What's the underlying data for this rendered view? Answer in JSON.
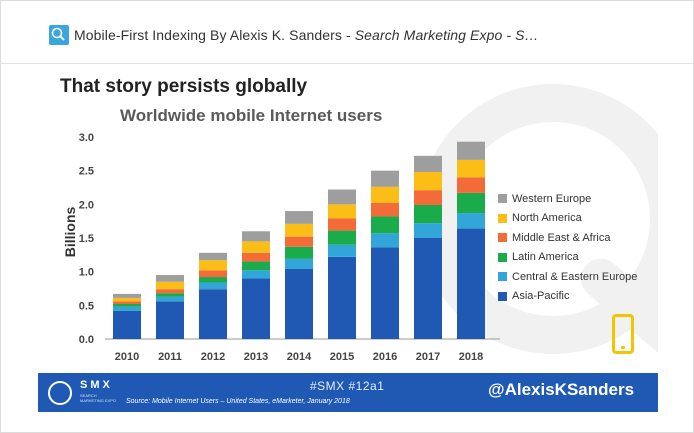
{
  "window": {
    "title_plain": "Mobile-First Indexing By Alexis K. Sanders - ",
    "title_italic": "Search Marketing Expo - S…",
    "logo_icon": "smx-logo-icon"
  },
  "slide": {
    "headline": "That story persists globally",
    "subtitle": "Worldwide mobile Internet users",
    "ylabel": "Billions",
    "footer": {
      "brand": "SMX",
      "brand_sub": "SEARCH MARKETING EXPO",
      "source": "Source: Mobile Internet Users – United States, eMarketer, January 2018",
      "hashtag": "#SMX #12a1",
      "handle": "@AlexisKSanders"
    },
    "phone_icon": "smartphone-icon"
  },
  "chart_data": {
    "type": "bar",
    "stacked": true,
    "categories": [
      "2010",
      "2011",
      "2012",
      "2013",
      "2014",
      "2015",
      "2016",
      "2017",
      "2018"
    ],
    "yticks": [
      "0.0",
      "0.5",
      "1.0",
      "1.5",
      "2.0",
      "2.5",
      "3.0"
    ],
    "ylim": [
      0,
      3.0
    ],
    "legend_position": "right",
    "series": [
      {
        "name": "Asia-Pacific",
        "color": "#1f59b4",
        "values": [
          0.42,
          0.56,
          0.74,
          0.9,
          1.04,
          1.22,
          1.36,
          1.5,
          1.64
        ]
      },
      {
        "name": "Central & Eastern Europe",
        "color": "#32a6d9",
        "values": [
          0.06,
          0.07,
          0.1,
          0.12,
          0.15,
          0.18,
          0.21,
          0.22,
          0.23
        ]
      },
      {
        "name": "Latin America",
        "color": "#1aab4b",
        "values": [
          0.04,
          0.05,
          0.08,
          0.13,
          0.18,
          0.21,
          0.25,
          0.27,
          0.3
        ]
      },
      {
        "name": "Middle East & Africa",
        "color": "#f26b38",
        "values": [
          0.04,
          0.06,
          0.1,
          0.13,
          0.15,
          0.18,
          0.2,
          0.22,
          0.23
        ]
      },
      {
        "name": "North America",
        "color": "#fbbe16",
        "values": [
          0.05,
          0.11,
          0.15,
          0.17,
          0.19,
          0.21,
          0.24,
          0.27,
          0.26
        ]
      },
      {
        "name": "Western Europe",
        "color": "#9e9e9e",
        "values": [
          0.06,
          0.1,
          0.11,
          0.15,
          0.19,
          0.22,
          0.24,
          0.24,
          0.27
        ]
      }
    ]
  }
}
